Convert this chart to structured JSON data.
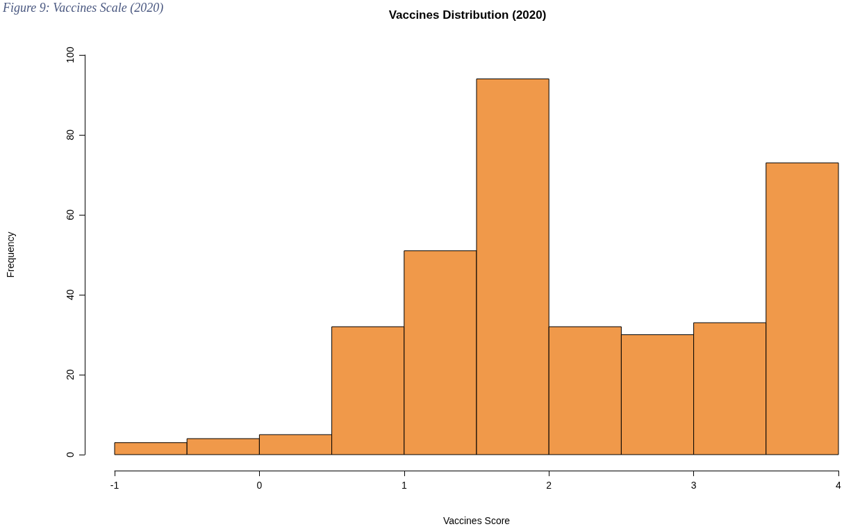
{
  "chart_data": {
    "type": "histogram",
    "title": "Vaccines Distribution (2020)",
    "xlabel": "Vaccines Score",
    "ylabel": "Frequency",
    "annotations": [
      "Figure 9: Vaccines Scale (2020)"
    ],
    "bins": [
      -1,
      -0.5,
      0,
      0.5,
      1,
      1.5,
      2,
      2.5,
      3,
      3.5,
      4
    ],
    "values": [
      3,
      4,
      5,
      32,
      51,
      94,
      32,
      30,
      33,
      73
    ],
    "color": "#f0994a",
    "xlim": [
      -1,
      4
    ],
    "xticks": [
      -1,
      0,
      1,
      2,
      3,
      4
    ],
    "ylim": [
      0,
      100
    ],
    "yticks": [
      0,
      20,
      40,
      60,
      80,
      100
    ]
  }
}
